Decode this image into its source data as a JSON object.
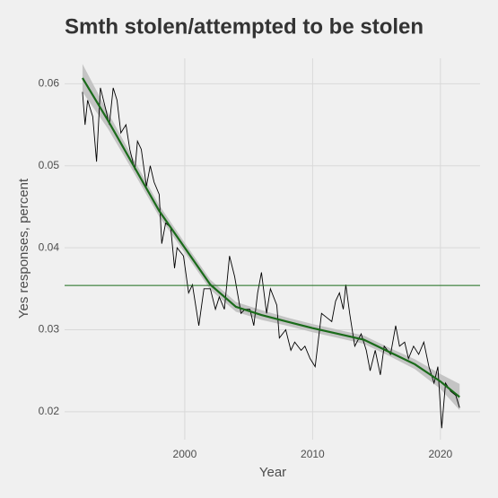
{
  "chart_data": {
    "type": "line",
    "title": "Smth stolen/attempted to be stolen",
    "x_label": "Year",
    "y_label": "Yes responses, percent",
    "xlim": [
      1990.6,
      2023.1
    ],
    "ylim": [
      0.0166,
      0.0631
    ],
    "xticks": [
      2000,
      2010,
      2020
    ],
    "yticks": [
      0.02,
      0.03,
      0.04,
      0.05,
      0.06
    ],
    "grid": true,
    "color": "#000000",
    "x": [
      1992.0,
      1992.2,
      1992.4,
      1992.8,
      1993.1,
      1993.4,
      1993.8,
      1994.1,
      1994.4,
      1994.7,
      1995.0,
      1995.4,
      1995.7,
      1996.1,
      1996.3,
      1996.6,
      1997.0,
      1997.3,
      1997.6,
      1998.0,
      1998.2,
      1998.5,
      1998.9,
      1999.2,
      1999.4,
      1999.9,
      2000.3,
      2000.6,
      2001.1,
      2001.5,
      2002.0,
      2002.4,
      2002.7,
      2003.1,
      2003.5,
      2003.9,
      2004.4,
      2004.7,
      2005.1,
      2005.4,
      2005.7,
      2006.0,
      2006.4,
      2006.7,
      2007.2,
      2007.4,
      2007.9,
      2008.3,
      2008.6,
      2009.1,
      2009.4,
      2009.8,
      2010.2,
      2010.7,
      2011.1,
      2011.5,
      2011.8,
      2012.1,
      2012.4,
      2012.6,
      2012.9,
      2013.3,
      2013.8,
      2014.2,
      2014.5,
      2014.9,
      2015.3,
      2015.6,
      2016.1,
      2016.5,
      2016.8,
      2017.2,
      2017.5,
      2017.9,
      2018.3,
      2018.7,
      2019.1,
      2019.5,
      2019.8,
      2020.1,
      2020.4,
      2020.8,
      2021.2,
      2021.5
    ],
    "values": [
      0.059,
      0.055,
      0.058,
      0.056,
      0.0505,
      0.0595,
      0.057,
      0.055,
      0.0595,
      0.058,
      0.054,
      0.055,
      0.052,
      0.0495,
      0.053,
      0.052,
      0.0475,
      0.05,
      0.048,
      0.0465,
      0.0405,
      0.043,
      0.0425,
      0.0375,
      0.04,
      0.039,
      0.0345,
      0.0355,
      0.0305,
      0.035,
      0.035,
      0.0325,
      0.034,
      0.0325,
      0.039,
      0.0365,
      0.032,
      0.0325,
      0.0325,
      0.0305,
      0.0345,
      0.037,
      0.032,
      0.035,
      0.033,
      0.029,
      0.03,
      0.0275,
      0.0285,
      0.0275,
      0.028,
      0.0265,
      0.0255,
      0.032,
      0.0315,
      0.031,
      0.0335,
      0.0345,
      0.0325,
      0.0355,
      0.032,
      0.028,
      0.0295,
      0.0275,
      0.025,
      0.0275,
      0.0245,
      0.028,
      0.027,
      0.0305,
      0.028,
      0.0285,
      0.0265,
      0.028,
      0.027,
      0.0285,
      0.0255,
      0.0235,
      0.0255,
      0.018,
      0.0235,
      0.0225,
      0.022,
      0.0205
    ],
    "smooth_color": "#1a6b1a",
    "band_color": "#c4c4c4",
    "smooth_x": [
      1992,
      1994,
      1996,
      1998,
      2000,
      2002,
      2004,
      2006,
      2008,
      2010,
      2012,
      2014,
      2016,
      2018,
      2020,
      2021.5
    ],
    "smooth_values": [
      0.0607,
      0.0555,
      0.05,
      0.0445,
      0.04,
      0.0355,
      0.0328,
      0.0318,
      0.031,
      0.0302,
      0.0295,
      0.0288,
      0.0273,
      0.0258,
      0.0237,
      0.0218
    ],
    "smooth_lower": [
      0.059,
      0.0545,
      0.0492,
      0.0438,
      0.0394,
      0.0349,
      0.0322,
      0.0312,
      0.0305,
      0.0297,
      0.029,
      0.0283,
      0.0268,
      0.0252,
      0.0228,
      0.0202
    ],
    "smooth_upper": [
      0.0624,
      0.0565,
      0.0508,
      0.0452,
      0.0406,
      0.0361,
      0.0334,
      0.0324,
      0.0315,
      0.0307,
      0.03,
      0.0293,
      0.0278,
      0.0264,
      0.0246,
      0.0234
    ],
    "hline": 0.0354,
    "hline_color": "#1a6b1a"
  }
}
